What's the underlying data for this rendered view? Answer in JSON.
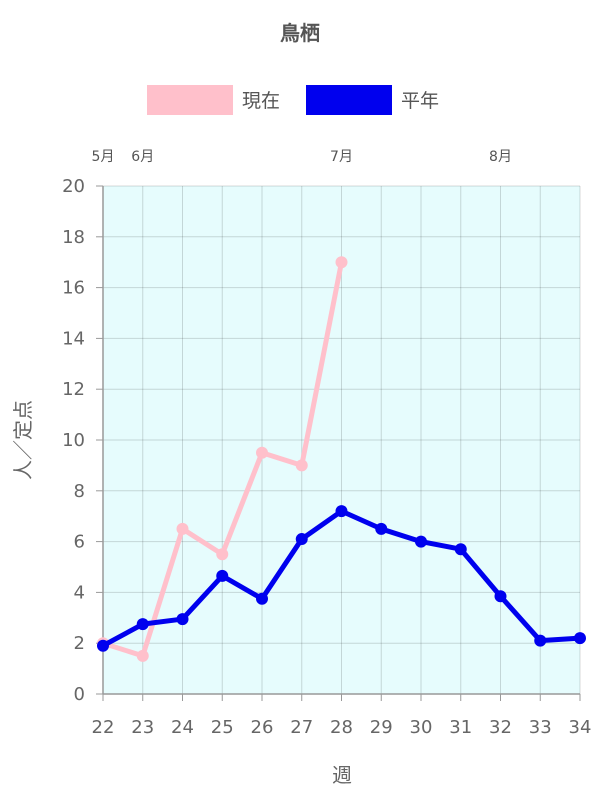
{
  "chart_data": {
    "type": "line",
    "title": "鳥栖",
    "xlabel": "週",
    "ylabel": "人／定点",
    "x": [
      22,
      23,
      24,
      25,
      26,
      27,
      28,
      29,
      30,
      31,
      32,
      33,
      34
    ],
    "xlim": [
      22,
      34
    ],
    "ylim": [
      0,
      20
    ],
    "yticks": [
      0,
      2,
      4,
      6,
      8,
      10,
      12,
      14,
      16,
      18,
      20
    ],
    "grid": true,
    "legend_position": "top",
    "plot_background": "#e6fcfd",
    "series": [
      {
        "name": "現在",
        "color": "#ffc0cb",
        "values": [
          2.0,
          1.5,
          6.5,
          5.5,
          9.5,
          9.0,
          17.0,
          null,
          null,
          null,
          null,
          null,
          null
        ]
      },
      {
        "name": "平年",
        "color": "#0000ee",
        "values": [
          1.9,
          2.75,
          2.95,
          4.65,
          3.75,
          6.1,
          7.2,
          6.5,
          6.0,
          5.7,
          3.85,
          2.1,
          2.2
        ]
      }
    ],
    "month_labels": [
      {
        "label": "5月",
        "week": 22
      },
      {
        "label": "6月",
        "week": 23
      },
      {
        "label": "7月",
        "week": 28
      },
      {
        "label": "8月",
        "week": 32
      }
    ]
  }
}
